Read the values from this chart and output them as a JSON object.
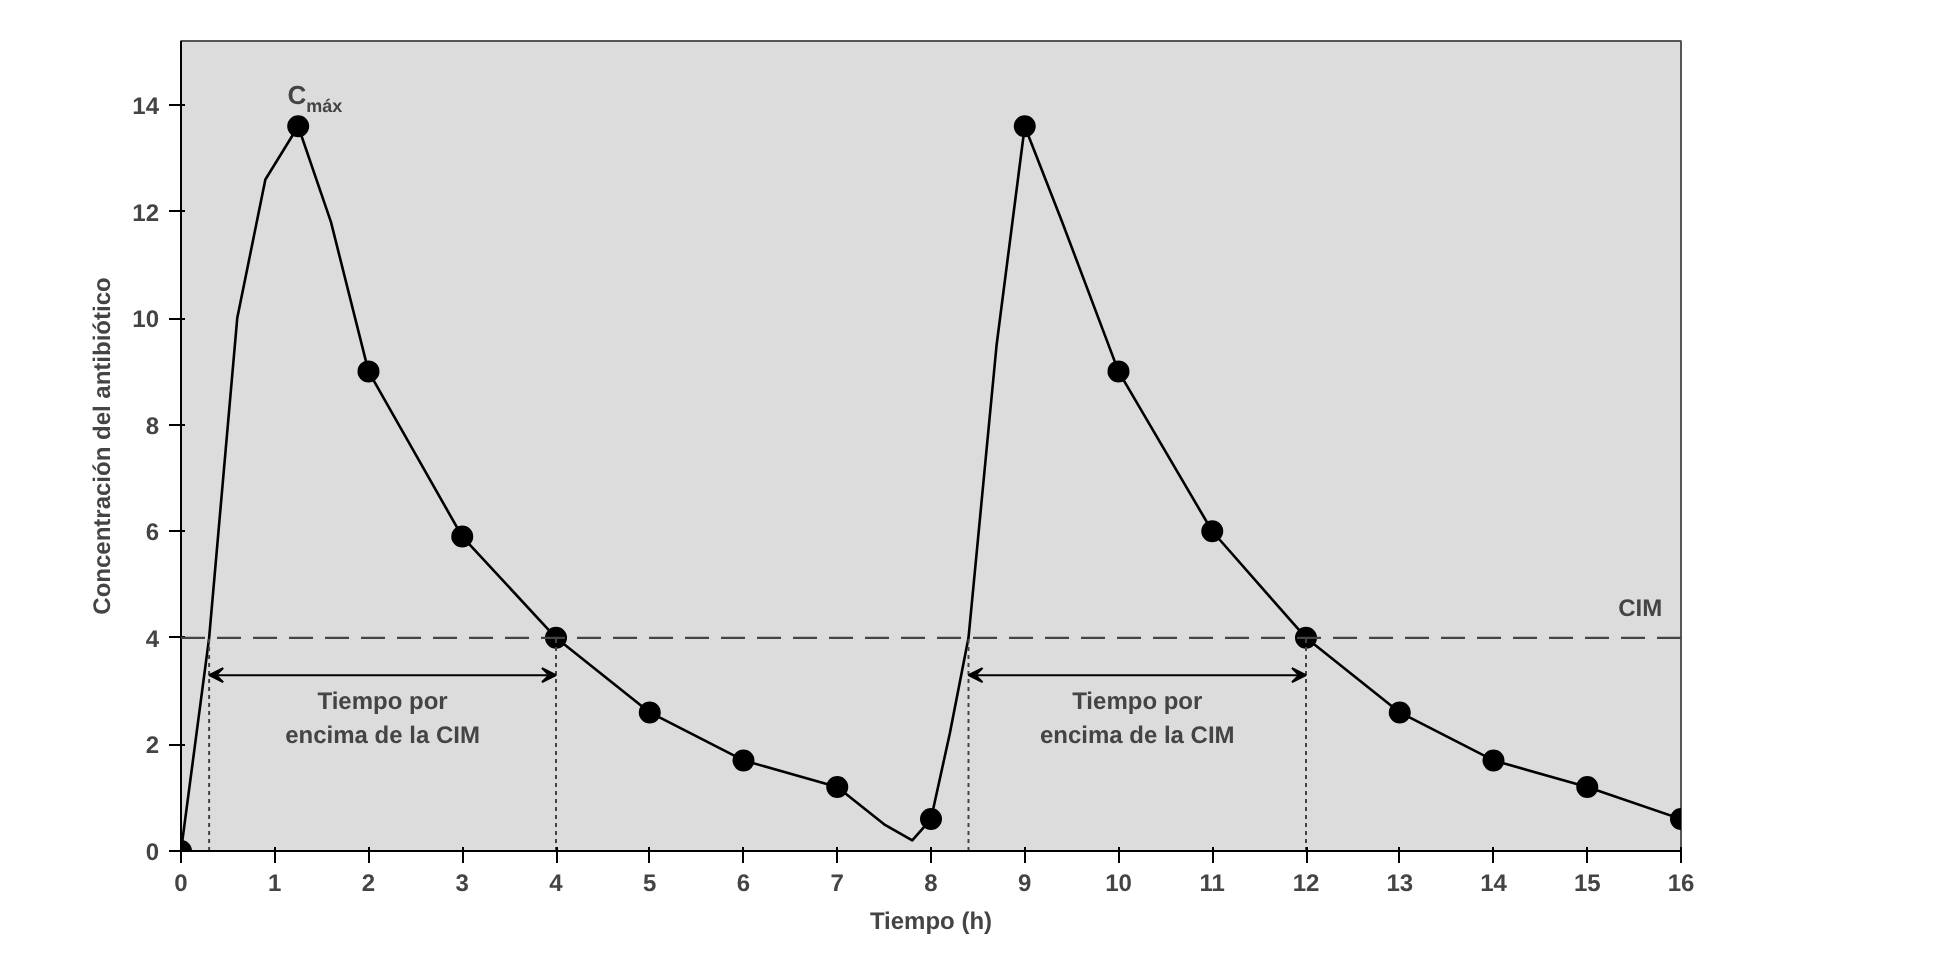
{
  "chart_data": {
    "type": "line",
    "xlabel": "Tiempo (h)",
    "ylabel": "Concentración del antibiótico",
    "xlim": [
      0,
      16
    ],
    "ylim": [
      0,
      15.2
    ],
    "xticks": [
      0,
      1,
      2,
      3,
      4,
      5,
      6,
      7,
      8,
      9,
      10,
      11,
      12,
      13,
      14,
      15,
      16
    ],
    "yticks": [
      0,
      2,
      4,
      6,
      8,
      10,
      12,
      14
    ],
    "grid": false,
    "series": [
      {
        "color": "#000000",
        "marker": "none",
        "x": [
          0,
          0.3,
          0.6,
          0.9,
          1.25,
          1.6,
          2,
          3,
          4,
          5,
          6,
          7,
          7.5,
          7.8,
          8,
          8.2,
          8.4,
          8.7,
          9,
          9.4,
          10,
          11,
          12,
          13,
          14,
          15,
          16
        ],
        "values": [
          0,
          4,
          10,
          12.6,
          13.6,
          11.8,
          9,
          5.9,
          4,
          2.6,
          1.7,
          1.2,
          0.5,
          0.2,
          0.6,
          2.2,
          4,
          9.5,
          13.6,
          11.8,
          9,
          6,
          4,
          2.6,
          1.7,
          1.2,
          0.6
        ]
      },
      {
        "type": "scatter",
        "color": "#000000",
        "marker": "circle",
        "x": [
          0,
          1.25,
          2,
          3,
          4,
          5,
          6,
          7,
          8,
          9,
          10,
          11,
          12,
          13,
          14,
          15,
          16
        ],
        "values": [
          0,
          13.6,
          9,
          5.9,
          4,
          2.6,
          1.7,
          1.2,
          0.6,
          13.6,
          9,
          6,
          4,
          2.6,
          1.7,
          1.2,
          0.6
        ]
      }
    ],
    "ref_lines": [
      {
        "axis": "y",
        "value": 4,
        "label": "CIM",
        "line_style": "dashed",
        "color": "#444444"
      },
      {
        "axis": "x",
        "value": 0.3,
        "label": null,
        "line_style": "dotted",
        "color": "#444444"
      },
      {
        "axis": "x",
        "value": 4,
        "label": null,
        "line_style": "dotted",
        "color": "#444444"
      },
      {
        "axis": "x",
        "value": 8.4,
        "label": null,
        "line_style": "dotted",
        "color": "#444444"
      },
      {
        "axis": "x",
        "value": 12,
        "label": null,
        "line_style": "dotted",
        "color": "#444444"
      }
    ],
    "annotations": [
      {
        "text": "C$_{máx}$",
        "x": 1.25,
        "y": 13.6
      },
      "Tiempo por\nencima de la CIM",
      "Tiempo por\nencima de la CIM"
    ]
  }
}
